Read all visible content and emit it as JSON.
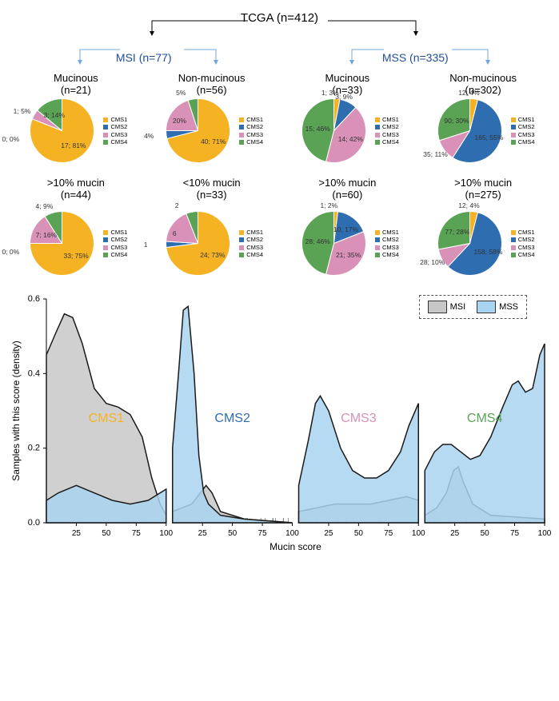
{
  "hierarchy": {
    "root": "TCGA (n=412)",
    "level1": [
      {
        "label": "MSI (n=77)"
      },
      {
        "label": "MSS (n=335)"
      }
    ],
    "level2": [
      {
        "label1": "Mucinous",
        "label2": "(n=21)"
      },
      {
        "label1": "Non-mucinous",
        "label2": "(n=56)"
      },
      {
        "label1": "Mucinous",
        "label2": "(n=33)"
      },
      {
        "label1": "Non-mucinous",
        "label2": "(n=302)"
      }
    ]
  },
  "cms_colors": {
    "CMS1": "#f5b324",
    "CMS2": "#2f6db1",
    "CMS3": "#d991b8",
    "CMS4": "#5aa355"
  },
  "legend_items": [
    "CMS1",
    "CMS2",
    "CMS3",
    "CMS4"
  ],
  "pies_row1": [
    {
      "slices": [
        {
          "key": "CMS1",
          "value": 81,
          "label": "17; 81%"
        },
        {
          "key": "CMS2",
          "value": 0,
          "label": "0; 0%"
        },
        {
          "key": "CMS3",
          "value": 5,
          "label": "1; 5%"
        },
        {
          "key": "CMS4",
          "value": 14,
          "label": "3; 14%"
        }
      ]
    },
    {
      "slices": [
        {
          "key": "CMS1",
          "value": 71,
          "label": "40; 71%"
        },
        {
          "key": "CMS2",
          "value": 4,
          "label": "4%"
        },
        {
          "key": "CMS3",
          "value": 20,
          "label": "20%"
        },
        {
          "key": "CMS4",
          "value": 5,
          "label": "5%"
        }
      ]
    },
    {
      "slices": [
        {
          "key": "CMS1",
          "value": 3,
          "label": "1; 3%"
        },
        {
          "key": "CMS2",
          "value": 9,
          "label": "3; 9%"
        },
        {
          "key": "CMS3",
          "value": 42,
          "label": "14; 42%"
        },
        {
          "key": "CMS4",
          "value": 46,
          "label": "15; 46%"
        }
      ]
    },
    {
      "slices": [
        {
          "key": "CMS1",
          "value": 4,
          "label": "12; 4%"
        },
        {
          "key": "CMS2",
          "value": 55,
          "label": "165; 55%"
        },
        {
          "key": "CMS3",
          "value": 11,
          "label": "35; 11%"
        },
        {
          "key": "CMS4",
          "value": 30,
          "label": "90; 30%"
        }
      ]
    }
  ],
  "row2_titles": [
    {
      "label1": ">10% mucin",
      "label2": "(n=44)"
    },
    {
      "label1": "<10% mucin",
      "label2": "(n=33)"
    },
    {
      "label1": ">10% mucin",
      "label2": "(n=60)"
    },
    {
      "label1": ">10% mucin",
      "label2": "(n=275)"
    }
  ],
  "pies_row2": [
    {
      "slices": [
        {
          "key": "CMS1",
          "value": 75,
          "label": "33; 75%"
        },
        {
          "key": "CMS2",
          "value": 0,
          "label": "0; 0%"
        },
        {
          "key": "CMS3",
          "value": 16,
          "label": "7; 16%"
        },
        {
          "key": "CMS4",
          "value": 9,
          "label": "4; 9%"
        }
      ]
    },
    {
      "slices": [
        {
          "key": "CMS1",
          "value": 73,
          "label": "24; 73%"
        },
        {
          "key": "CMS2",
          "value": 3,
          "label": "1"
        },
        {
          "key": "CMS3",
          "value": 18,
          "label": "6"
        },
        {
          "key": "CMS4",
          "value": 6,
          "label": "2"
        }
      ]
    },
    {
      "slices": [
        {
          "key": "CMS1",
          "value": 2,
          "label": "1; 2%"
        },
        {
          "key": "CMS2",
          "value": 17,
          "label": "10; 17%"
        },
        {
          "key": "CMS3",
          "value": 35,
          "label": "21; 35%"
        },
        {
          "key": "CMS4",
          "value": 46,
          "label": "28; 46%"
        }
      ]
    },
    {
      "slices": [
        {
          "key": "CMS1",
          "value": 4,
          "label": "12; 4%"
        },
        {
          "key": "CMS2",
          "value": 58,
          "label": "158; 58%"
        },
        {
          "key": "CMS3",
          "value": 10,
          "label": "28; 10%"
        },
        {
          "key": "CMS4",
          "value": 28,
          "label": "77; 28%"
        }
      ]
    }
  ],
  "density": {
    "ylabel": "Samples with this score (density)",
    "xlabel": "Mucin score",
    "ylim": [
      0,
      0.6
    ],
    "yticks": [
      0,
      0.2,
      0.4,
      0.6
    ],
    "xlim": [
      0,
      100
    ],
    "xticks": [
      25,
      50,
      75,
      100
    ],
    "panel_labels": [
      "CMS1",
      "CMS2",
      "CMS3",
      "CMS4"
    ],
    "panel_label_colors": [
      "#f5b324",
      "#2f6db1",
      "#d991b8",
      "#5aa355"
    ],
    "msi_color": "#c8c8c8",
    "mss_color": "#a8d4f0",
    "stroke": "#1a1a1a",
    "legend": {
      "msi": "MSI",
      "mss": "MSS"
    },
    "series": [
      {
        "msi": [
          [
            0,
            0.45
          ],
          [
            8,
            0.51
          ],
          [
            15,
            0.56
          ],
          [
            22,
            0.55
          ],
          [
            30,
            0.48
          ],
          [
            40,
            0.36
          ],
          [
            50,
            0.32
          ],
          [
            60,
            0.31
          ],
          [
            70,
            0.29
          ],
          [
            80,
            0.23
          ],
          [
            88,
            0.12
          ],
          [
            95,
            0.05
          ],
          [
            100,
            0.02
          ]
        ],
        "mss": [
          [
            0,
            0.06
          ],
          [
            10,
            0.08
          ],
          [
            25,
            0.1
          ],
          [
            40,
            0.08
          ],
          [
            55,
            0.06
          ],
          [
            70,
            0.05
          ],
          [
            85,
            0.06
          ],
          [
            95,
            0.08
          ],
          [
            100,
            0.09
          ]
        ]
      },
      {
        "msi": [
          [
            0,
            0.03
          ],
          [
            8,
            0.04
          ],
          [
            16,
            0.05
          ],
          [
            28,
            0.1
          ],
          [
            33,
            0.08
          ],
          [
            40,
            0.03
          ],
          [
            60,
            0.01
          ],
          [
            100,
            0.0
          ]
        ],
        "mss": [
          [
            0,
            0.2
          ],
          [
            5,
            0.4
          ],
          [
            9,
            0.57
          ],
          [
            13,
            0.58
          ],
          [
            18,
            0.4
          ],
          [
            22,
            0.18
          ],
          [
            26,
            0.08
          ],
          [
            30,
            0.05
          ],
          [
            40,
            0.02
          ],
          [
            60,
            0.01
          ],
          [
            100,
            0.0
          ]
        ]
      },
      {
        "msi": [
          [
            0,
            0.03
          ],
          [
            15,
            0.04
          ],
          [
            30,
            0.05
          ],
          [
            45,
            0.05
          ],
          [
            60,
            0.05
          ],
          [
            75,
            0.06
          ],
          [
            90,
            0.07
          ],
          [
            100,
            0.06
          ]
        ],
        "mss": [
          [
            0,
            0.1
          ],
          [
            8,
            0.22
          ],
          [
            14,
            0.32
          ],
          [
            18,
            0.34
          ],
          [
            25,
            0.3
          ],
          [
            35,
            0.2
          ],
          [
            45,
            0.14
          ],
          [
            55,
            0.12
          ],
          [
            65,
            0.12
          ],
          [
            75,
            0.14
          ],
          [
            85,
            0.19
          ],
          [
            92,
            0.26
          ],
          [
            100,
            0.32
          ]
        ]
      },
      {
        "msi": [
          [
            0,
            0.02
          ],
          [
            10,
            0.04
          ],
          [
            18,
            0.08
          ],
          [
            24,
            0.14
          ],
          [
            28,
            0.15
          ],
          [
            32,
            0.11
          ],
          [
            40,
            0.05
          ],
          [
            55,
            0.02
          ],
          [
            100,
            0.01
          ]
        ],
        "mss": [
          [
            0,
            0.14
          ],
          [
            8,
            0.19
          ],
          [
            15,
            0.21
          ],
          [
            22,
            0.21
          ],
          [
            30,
            0.19
          ],
          [
            38,
            0.17
          ],
          [
            46,
            0.18
          ],
          [
            55,
            0.23
          ],
          [
            65,
            0.31
          ],
          [
            73,
            0.37
          ],
          [
            78,
            0.38
          ],
          [
            84,
            0.35
          ],
          [
            90,
            0.36
          ],
          [
            96,
            0.45
          ],
          [
            100,
            0.48
          ]
        ]
      }
    ]
  }
}
